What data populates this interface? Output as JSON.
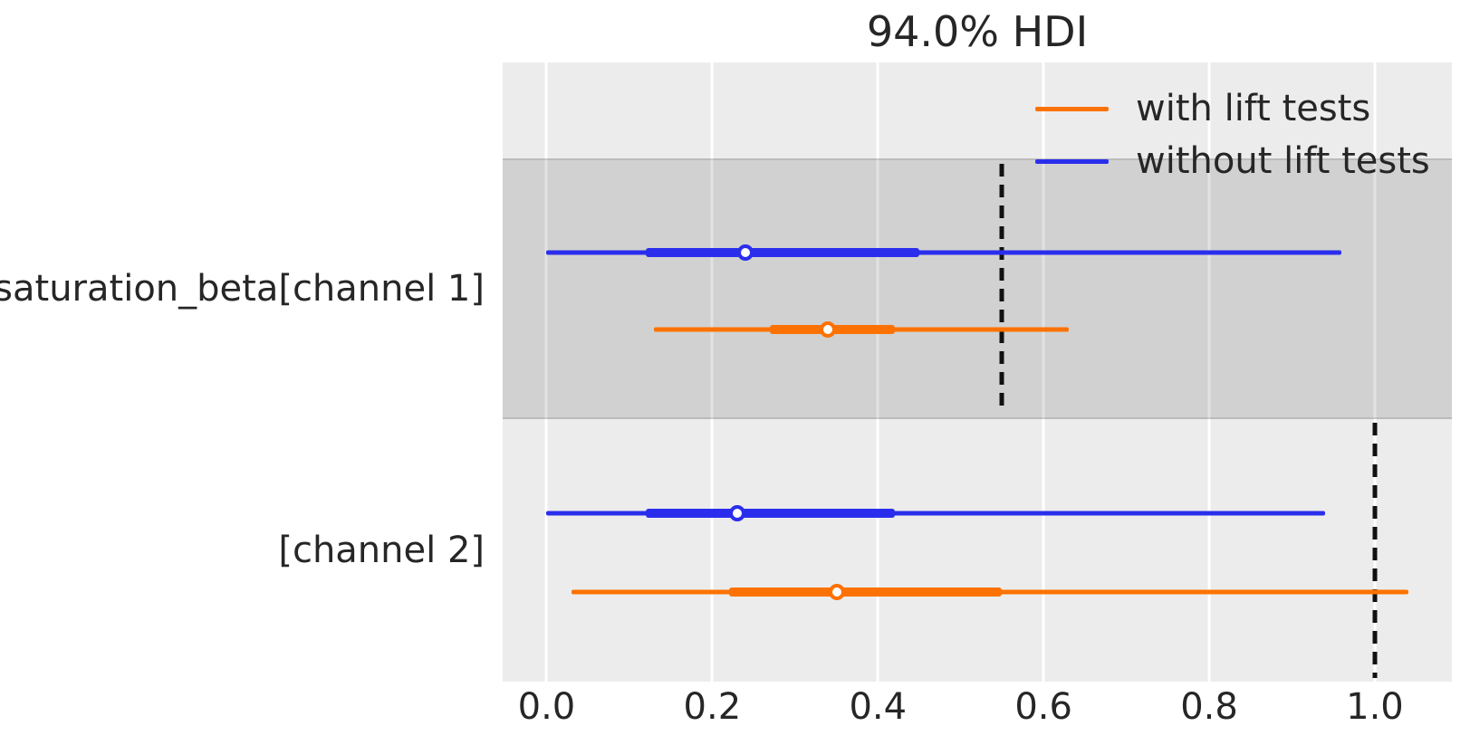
{
  "chart_data": {
    "type": "forest",
    "title": "94.0% HDI",
    "xlabel": "",
    "ylabel": "",
    "xlim": [
      -0.053,
      1.093
    ],
    "x_ticks": [
      0.0,
      0.2,
      0.4,
      0.6,
      0.8,
      1.0
    ],
    "x_tick_labels": [
      "0.0",
      "0.2",
      "0.4",
      "0.6",
      "0.8",
      "1.0"
    ],
    "grid": "vertical-white-on-gray",
    "legend_position": "upper-right-inside",
    "legend": [
      {
        "label": "with lift tests",
        "color": "#fc7202"
      },
      {
        "label": "without lift tests",
        "color": "#2a2eec"
      }
    ],
    "colors": {
      "with_lift_tests": "#fc7202",
      "without_lift_tests": "#2a2eec",
      "plot_background": "#ececec",
      "shaded_band": "#d4d4d4",
      "reference_line": "#111111",
      "text": "#262626"
    },
    "rows": [
      {
        "label": "saturation_beta[channel 1]",
        "shaded": true,
        "reference_line_x": 0.55,
        "series": [
          {
            "name": "without lift tests",
            "color": "#2a2eec",
            "hdi_low": 0.0,
            "hdi_high": 0.96,
            "thick_low": 0.12,
            "thick_high": 0.45,
            "point_estimate": 0.24
          },
          {
            "name": "with lift tests",
            "color": "#fc7202",
            "hdi_low": 0.13,
            "hdi_high": 0.63,
            "thick_low": 0.27,
            "thick_high": 0.42,
            "point_estimate": 0.34
          }
        ]
      },
      {
        "label": "[channel 2]",
        "shaded": false,
        "reference_line_x": 1.0,
        "series": [
          {
            "name": "without lift tests",
            "color": "#2a2eec",
            "hdi_low": 0.0,
            "hdi_high": 0.94,
            "thick_low": 0.12,
            "thick_high": 0.42,
            "point_estimate": 0.23
          },
          {
            "name": "with lift tests",
            "color": "#fc7202",
            "hdi_low": 0.03,
            "hdi_high": 1.04,
            "thick_low": 0.22,
            "thick_high": 0.55,
            "point_estimate": 0.35
          }
        ]
      }
    ]
  }
}
